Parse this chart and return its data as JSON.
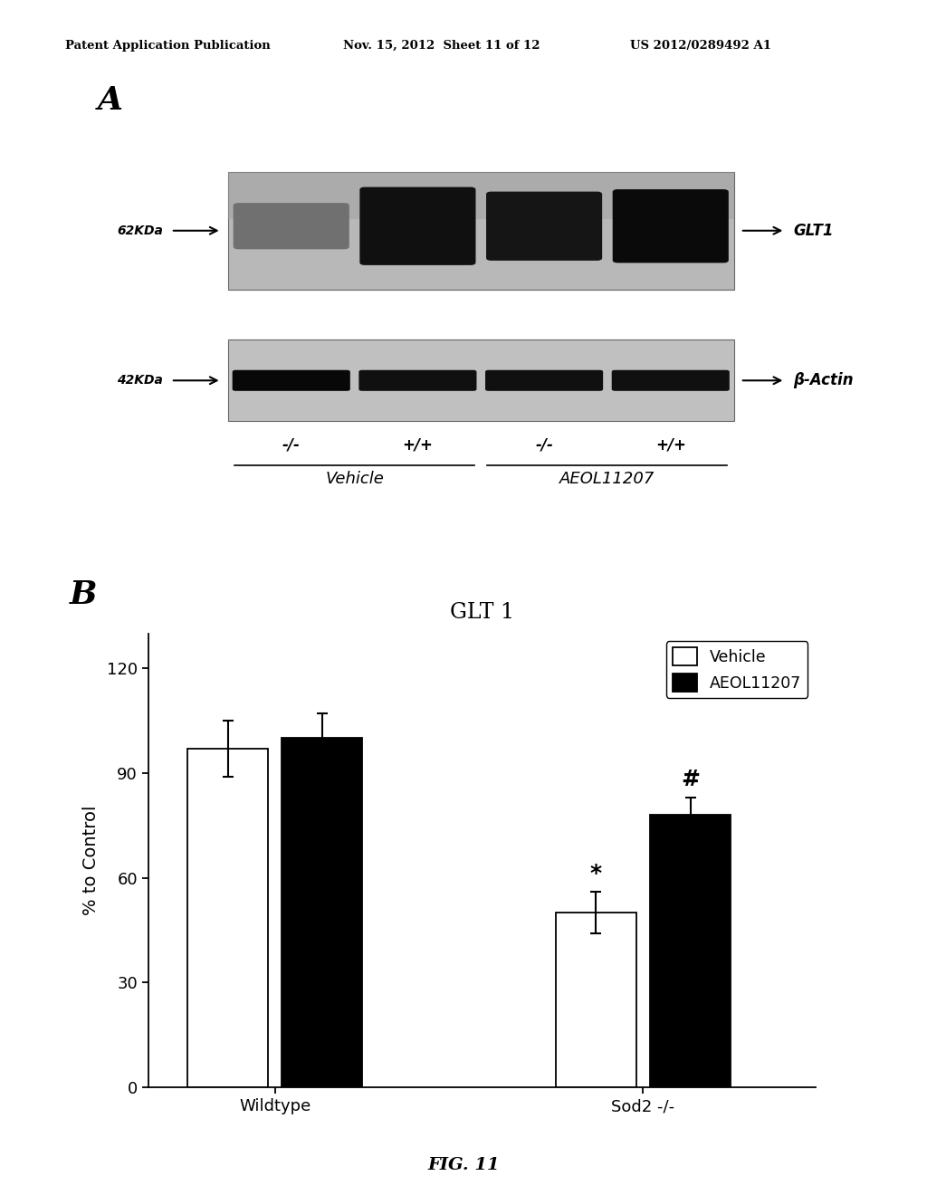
{
  "header_left": "Patent Application Publication",
  "header_mid": "Nov. 15, 2012  Sheet 11 of 12",
  "header_right": "US 2012/0289492 A1",
  "panel_a_label": "A",
  "panel_b_label": "B",
  "chart_title": "GLT 1",
  "ylabel": "% to Control",
  "yticks": [
    0,
    30,
    60,
    90,
    120
  ],
  "ylim": [
    0,
    130
  ],
  "group_labels": [
    "Wildtype",
    "Sod2 -/-"
  ],
  "legend_labels": [
    "Vehicle",
    "AEOL11207"
  ],
  "bar_values": [
    97,
    100,
    50,
    78
  ],
  "bar_errors": [
    8,
    7,
    6,
    5
  ],
  "bar_colors": [
    "#ffffff",
    "#000000",
    "#ffffff",
    "#000000"
  ],
  "bar_edgecolors": [
    "#000000",
    "#000000",
    "#000000",
    "#000000"
  ],
  "significance_sod2_vehicle": "*",
  "significance_sod2_aeol": "#",
  "fig_label": "FIG. 11",
  "blot_62kda_label": "62KDa",
  "blot_42kda_label": "42KDa",
  "blot_glt1_label": "GLT1",
  "blot_actin_label": "β-Actin",
  "blot_vehicle_label": "Vehicle",
  "blot_aeol_label": "AEOL11207",
  "blot_genotypes": [
    "-/-",
    "+/+",
    "-/-",
    "+/+"
  ],
  "background_color": "#ffffff",
  "bar_width": 0.35,
  "group_positions": [
    1.0,
    2.6
  ]
}
